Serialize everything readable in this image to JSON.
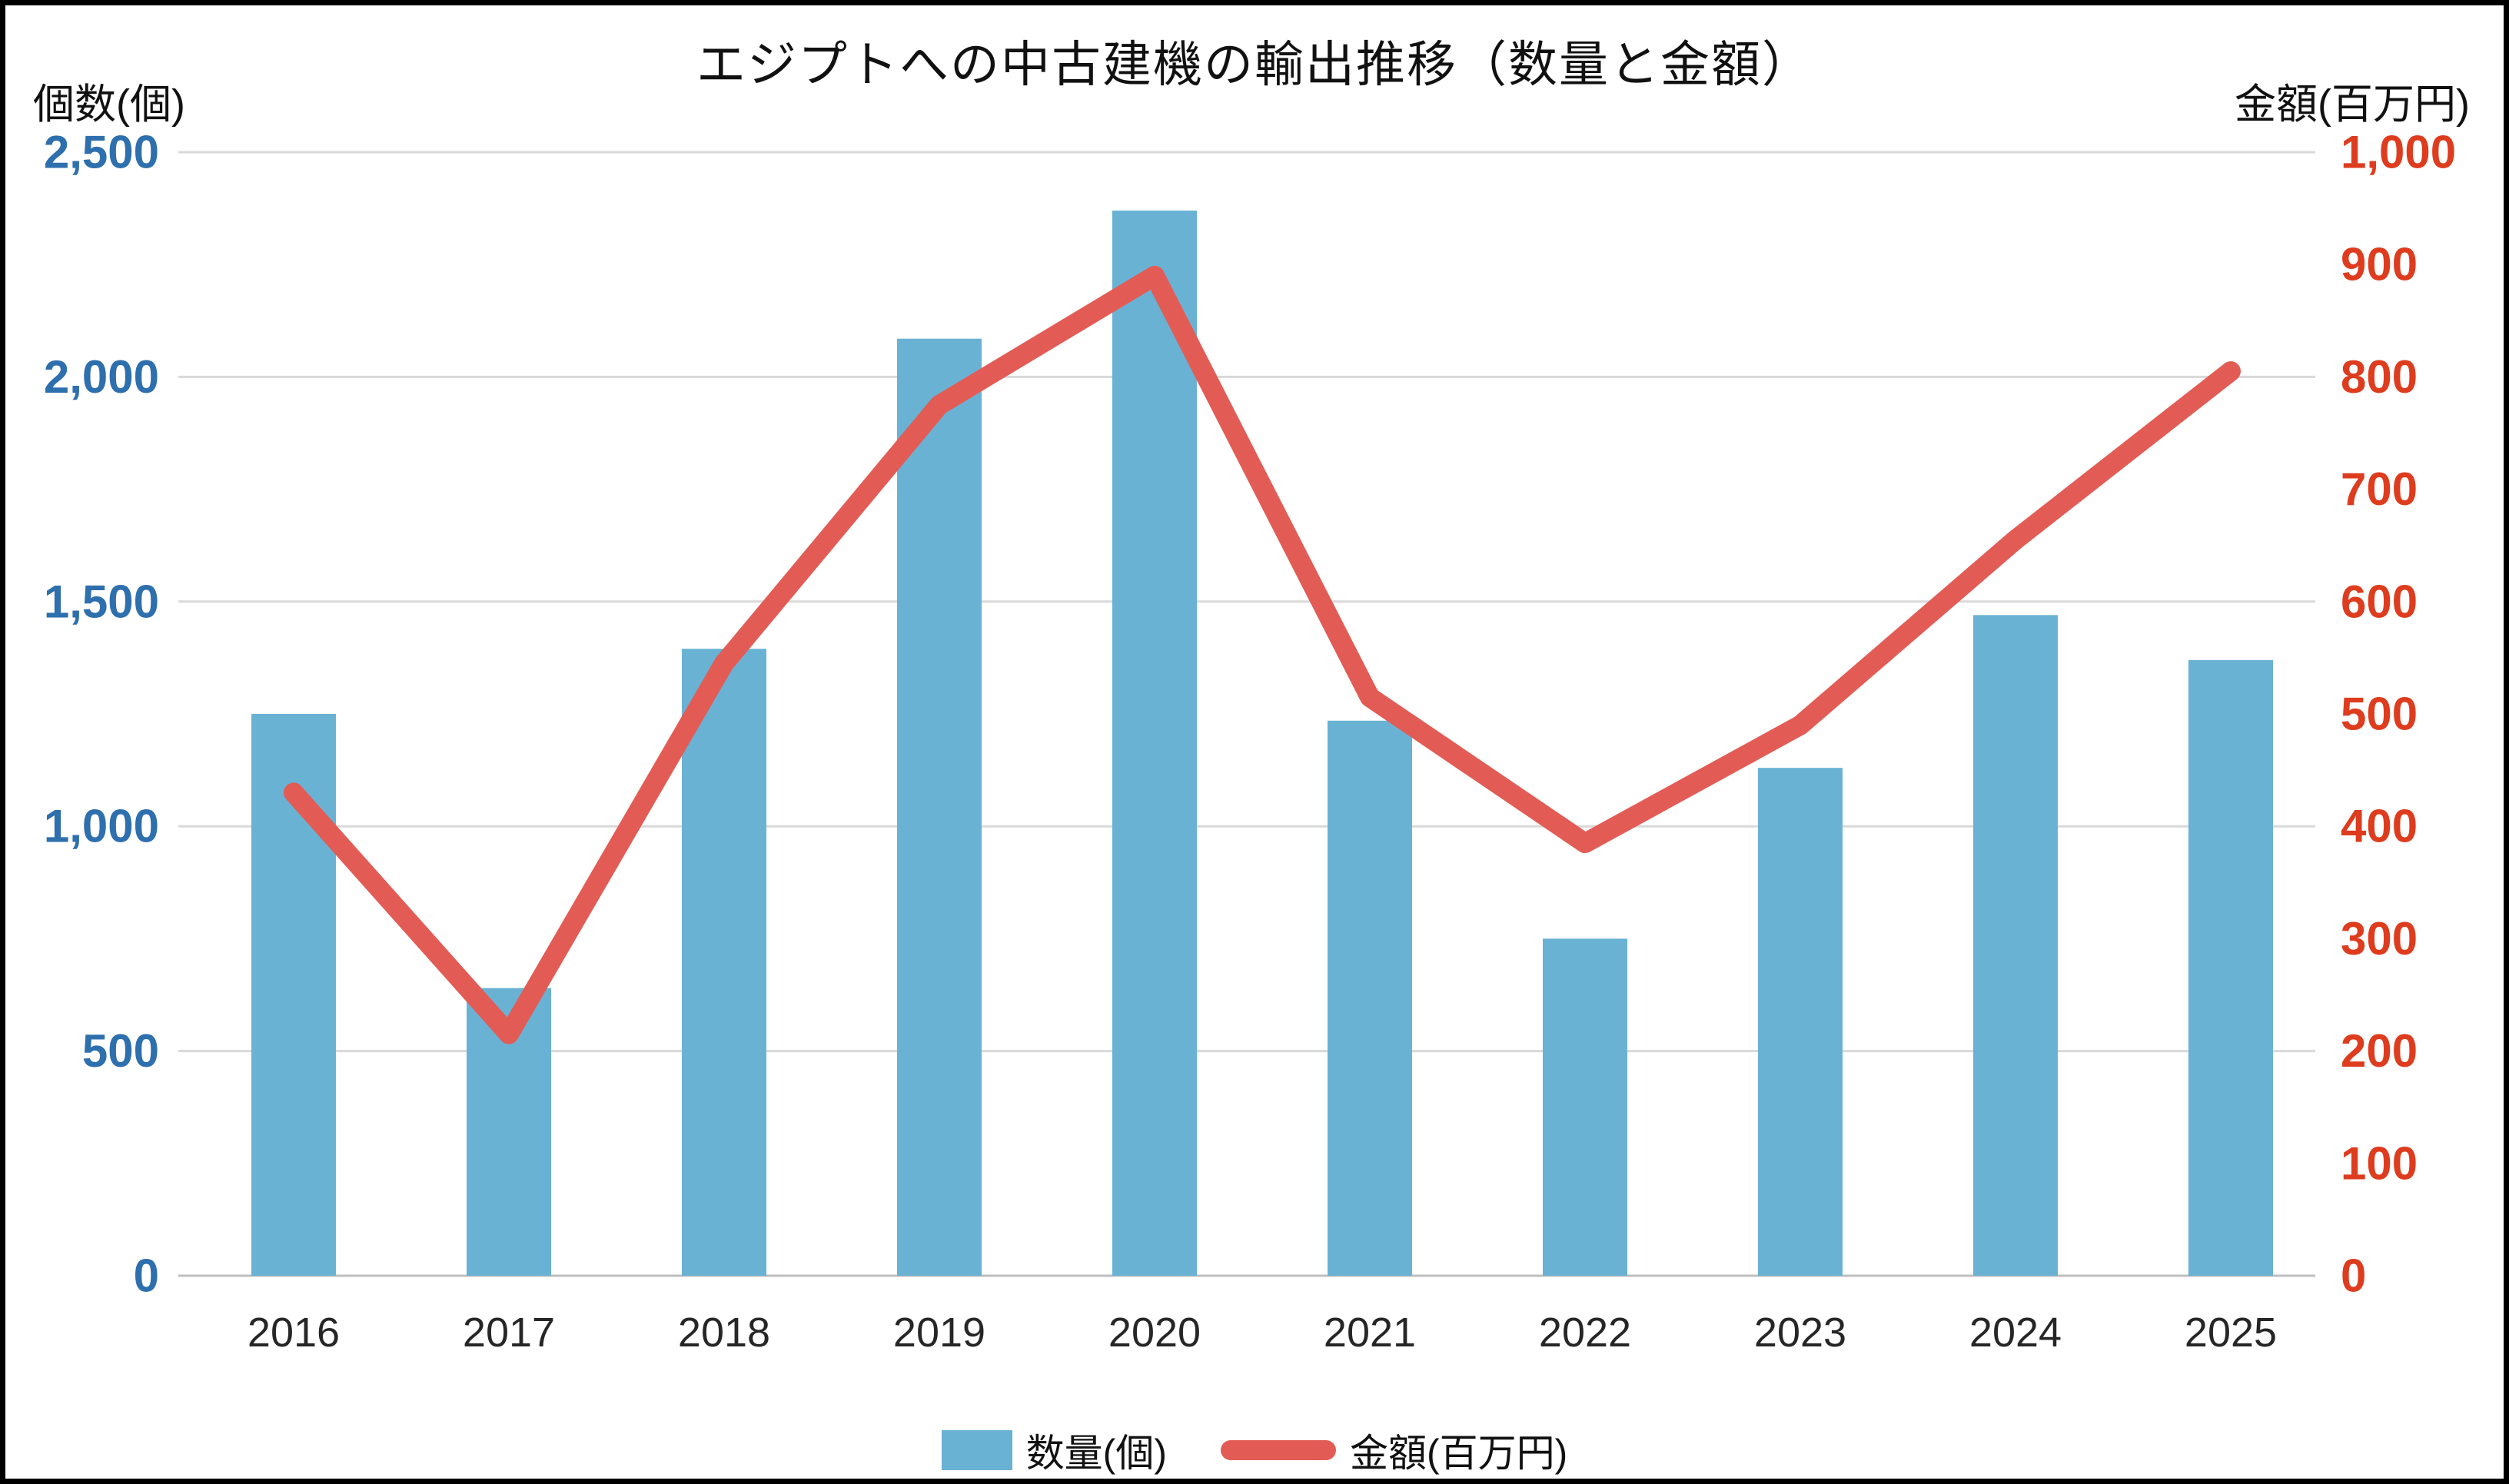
{
  "title": "エジプトへの中古建機の輸出推移（数量と金額）",
  "left_axis": {
    "unit_label": "個数(個)",
    "color": "#2E6FAD",
    "min": 0,
    "max": 2500,
    "tick_values": [
      0,
      500,
      1000,
      1500,
      2000,
      2500
    ],
    "tick_labels": [
      "0",
      "500",
      "1,000",
      "1,500",
      "2,000",
      "2,500"
    ]
  },
  "right_axis": {
    "unit_label": "金額(百万円)",
    "color": "#DE3C1E",
    "min": 0,
    "max": 1000,
    "tick_values": [
      0,
      100,
      200,
      300,
      400,
      500,
      600,
      700,
      800,
      900,
      1000
    ],
    "tick_labels": [
      "0",
      "100",
      "200",
      "300",
      "400",
      "500",
      "600",
      "700",
      "800",
      "900",
      "1,000"
    ]
  },
  "legend": {
    "position": "bottom",
    "items": [
      {
        "label": "数量(個)",
        "type": "bar",
        "color": "#6AB2D4"
      },
      {
        "label": "金額(百万円)",
        "type": "line",
        "color": "#E25C55"
      }
    ]
  },
  "chart_data": {
    "type": "bar",
    "subtype": "combo-bar-line-dual-axis",
    "title": "エジプトへの中古建機の輸出推移（数量と金額）",
    "categories": [
      "2016",
      "2017",
      "2018",
      "2019",
      "2020",
      "2021",
      "2022",
      "2023",
      "2024",
      "2025"
    ],
    "series": [
      {
        "name": "数量(個)",
        "type": "bar",
        "axis": "left",
        "color": "#6AB2D4",
        "values": [
          1250,
          640,
          1395,
          2085,
          2370,
          1235,
          750,
          1130,
          1470,
          1370
        ]
      },
      {
        "name": "金額(百万円)",
        "type": "line",
        "axis": "right",
        "color": "#E25C55",
        "values": [
          430,
          215,
          545,
          775,
          890,
          515,
          385,
          490,
          655,
          805
        ]
      }
    ],
    "left_ylim": [
      0,
      2500
    ],
    "right_ylim": [
      0,
      1000
    ],
    "grid": true,
    "gridline_color": "#D9D9D9",
    "axisline_color": "#BFBFBF",
    "category_label_color": "#262626",
    "legend_position": "bottom"
  }
}
